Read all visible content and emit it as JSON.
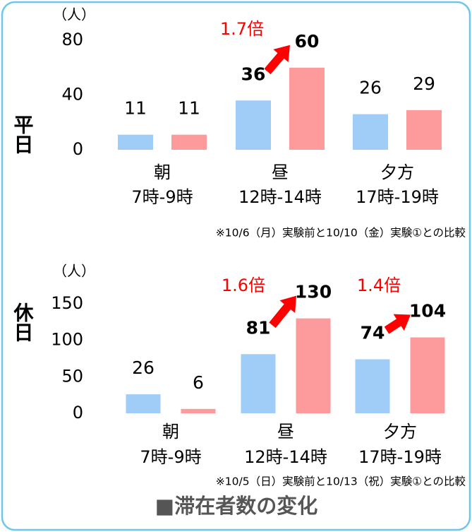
{
  "title": "■滞在者数の変化",
  "chart_data": [
    {
      "type": "bar",
      "side_label": "平日",
      "y_unit": "（人）",
      "categories": [
        [
          "朝",
          "7時-9時"
        ],
        [
          "昼",
          "12時-14時"
        ],
        [
          "夕方",
          "17時-19時"
        ]
      ],
      "series": [
        {
          "color": "#9fcdf8",
          "values": [
            11,
            36,
            26
          ]
        },
        {
          "color": "#fd9a9c",
          "values": [
            11,
            60,
            29
          ]
        }
      ],
      "ylim": [
        0,
        80
      ],
      "yticks": [
        0,
        40,
        80
      ],
      "grid": false,
      "annotations": [
        "1.7倍"
      ],
      "note": "※10/6（月）実験前と10/10（金）実験①との比較"
    },
    {
      "type": "bar",
      "side_label": "休日",
      "y_unit": "（人）",
      "categories": [
        [
          "朝",
          "7時-9時"
        ],
        [
          "昼",
          "12時-14時"
        ],
        [
          "夕方",
          "17時-19時"
        ]
      ],
      "series": [
        {
          "color": "#9fcdf8",
          "values": [
            26,
            81,
            74
          ]
        },
        {
          "color": "#fd9a9c",
          "values": [
            6,
            130,
            104
          ]
        }
      ],
      "ylim": [
        0,
        150
      ],
      "yticks": [
        0,
        50,
        100,
        150
      ],
      "grid": false,
      "annotations": [
        "1.6倍",
        "1.4倍"
      ],
      "note": "※10/5（日）実験前と10/13（祝）実験①との比較"
    }
  ]
}
